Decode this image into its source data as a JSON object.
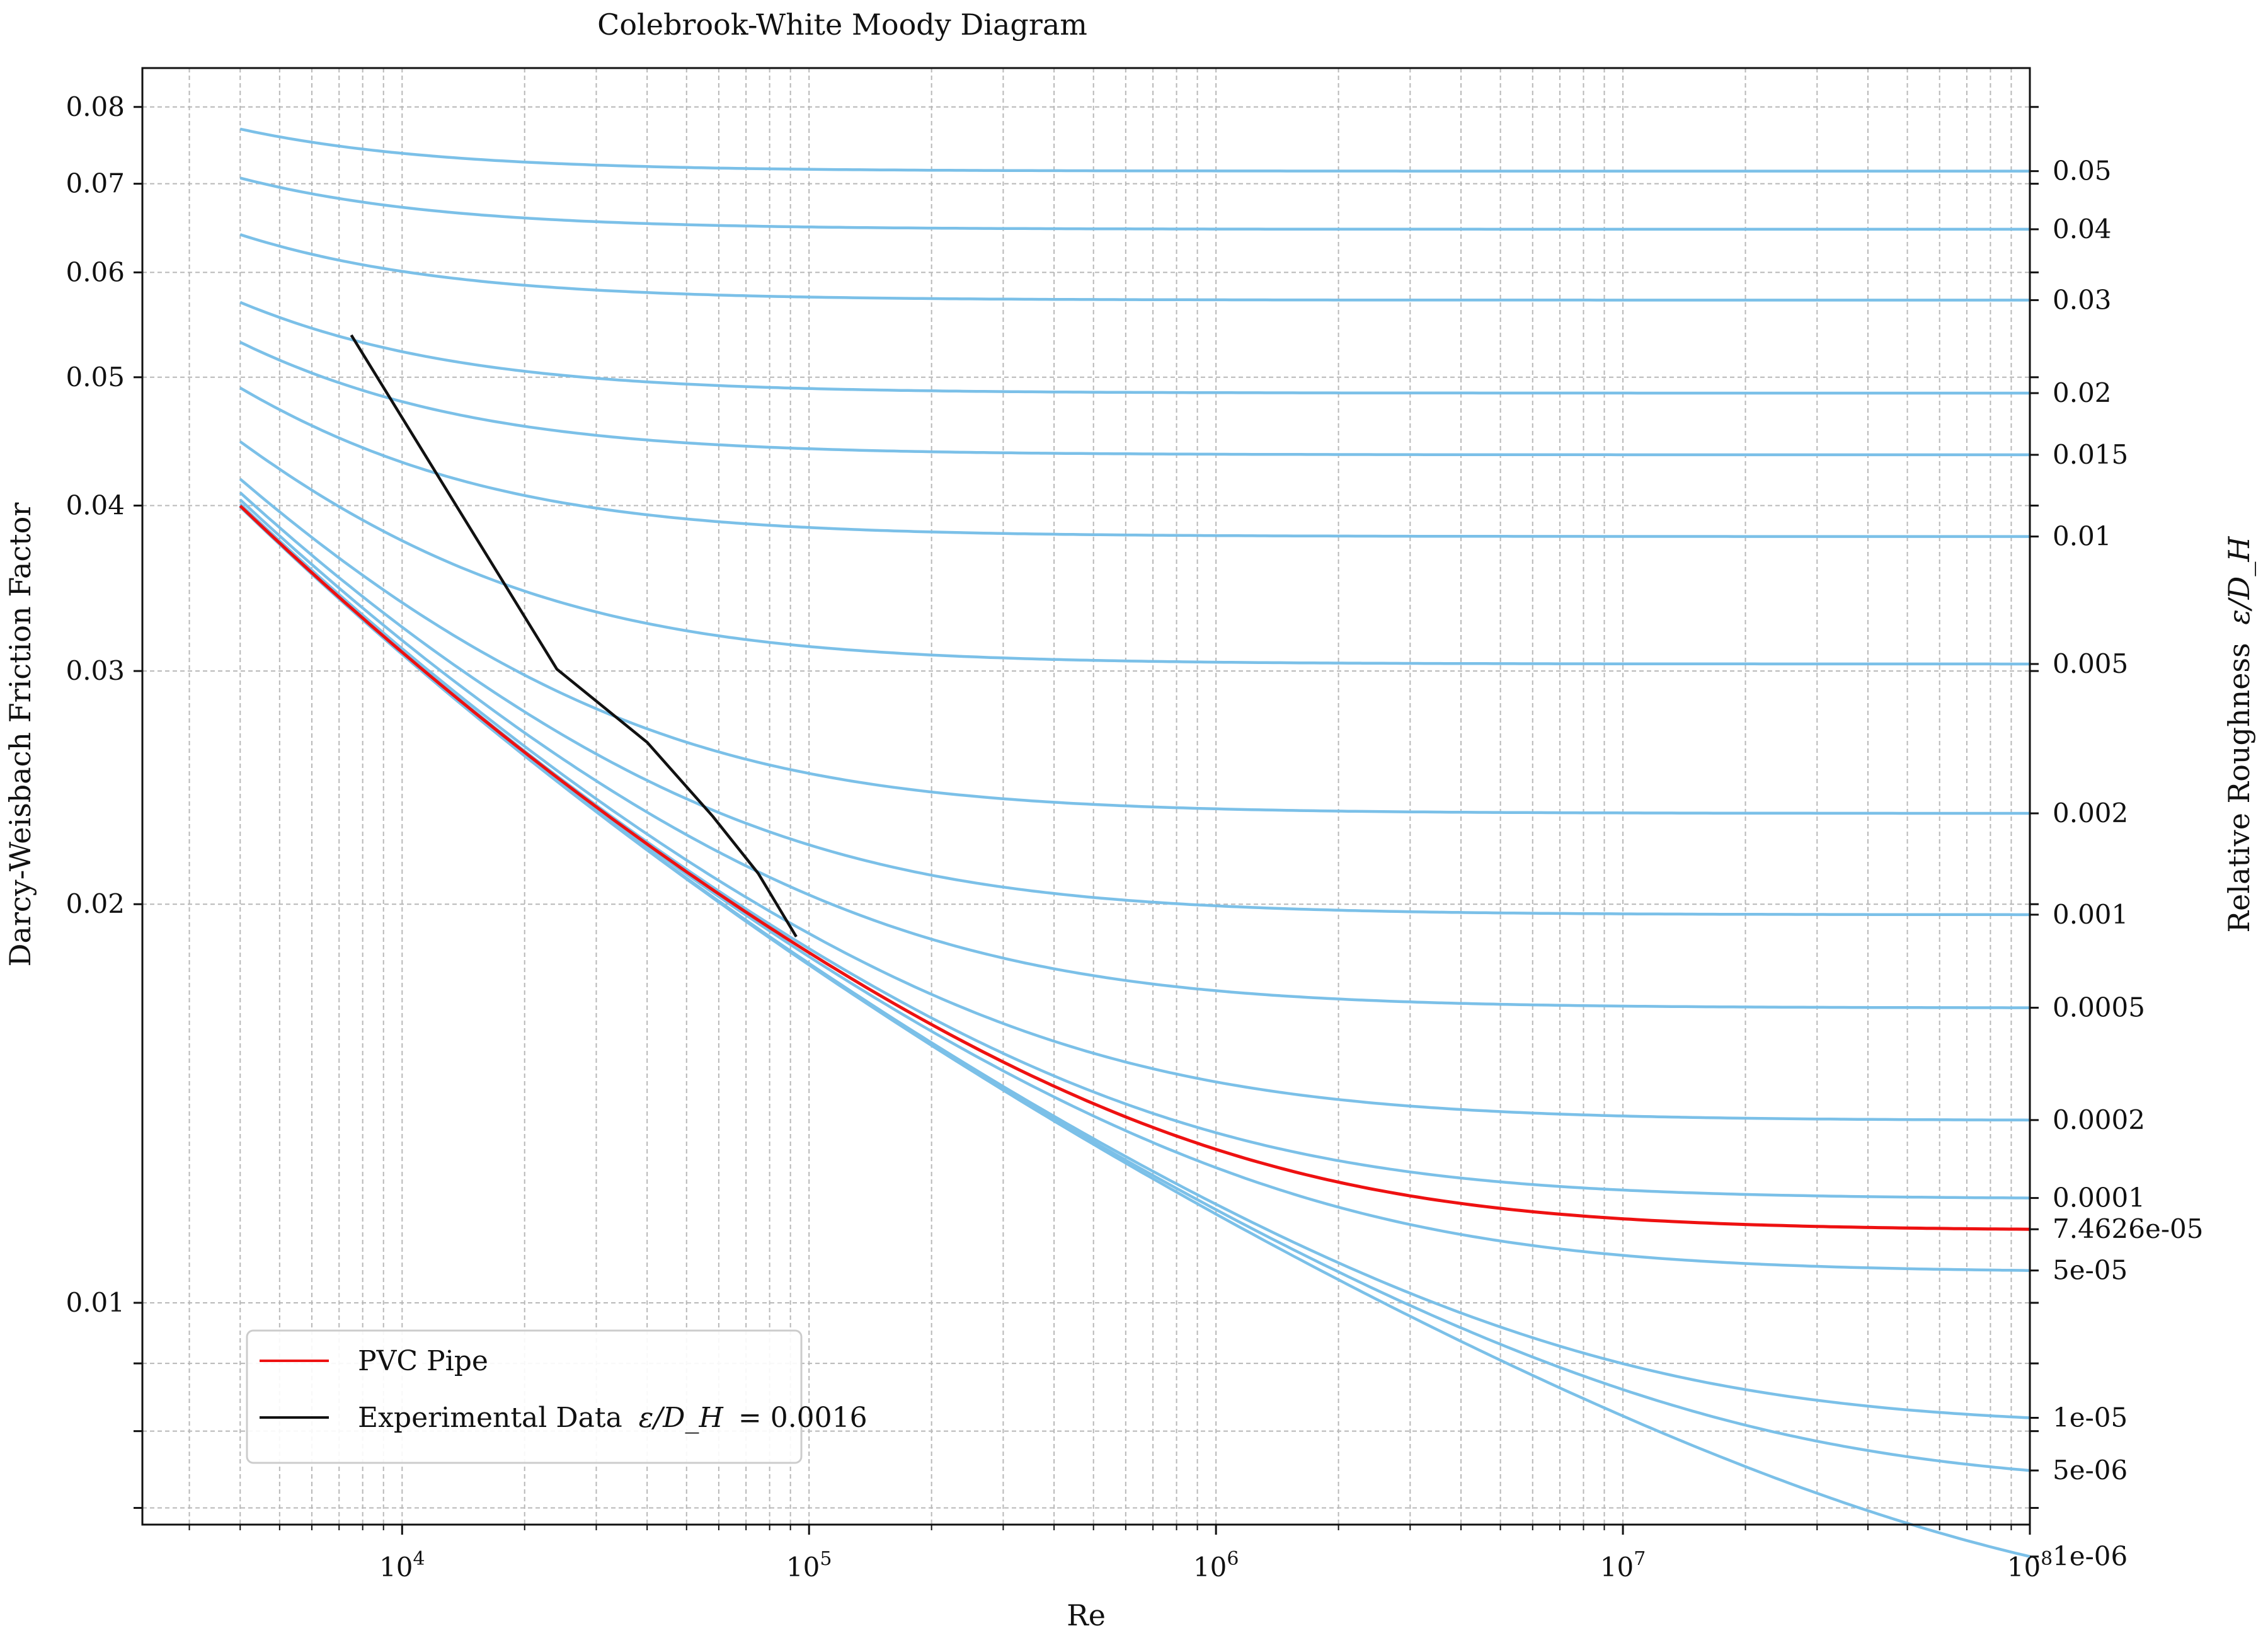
{
  "chart_data": {
    "type": "line",
    "title": "Colebrook-White Moody Diagram",
    "xlabel": "Re",
    "ylabel": "Darcy-Weisbach Friction Factor",
    "right_axis_label": "Relative Roughness",
    "right_axis_symbol": "ε/D_H",
    "x_scale": "log",
    "y_scale": "log",
    "xlim": [
      2300,
      100000000
    ],
    "ylim": [
      0.0068,
      0.0856
    ],
    "grid": true,
    "legend_position": "lower-left",
    "x_tick_labels": [
      {
        "value": 10000,
        "base": "10",
        "exp": "4"
      },
      {
        "value": 100000,
        "base": "10",
        "exp": "5"
      },
      {
        "value": 1000000,
        "base": "10",
        "exp": "6"
      },
      {
        "value": 10000000,
        "base": "10",
        "exp": "7"
      },
      {
        "value": 100000000,
        "base": "10",
        "exp": "8"
      }
    ],
    "y_tick_labels": [
      {
        "value": 0.08,
        "label": "0.08"
      },
      {
        "value": 0.07,
        "label": "0.07"
      },
      {
        "value": 0.06,
        "label": "0.06"
      },
      {
        "value": 0.05,
        "label": "0.05"
      },
      {
        "value": 0.04,
        "label": "0.04"
      },
      {
        "value": 0.03,
        "label": "0.03"
      },
      {
        "value": 0.02,
        "label": "0.02"
      },
      {
        "value": 0.01,
        "label": "0.01"
      }
    ],
    "y_minor_ticks": [
      0.009,
      0.008,
      0.007
    ],
    "roughness_curves": {
      "color": "#7bc0e8",
      "re_range": [
        4000,
        100000000
      ],
      "values": [
        0.05,
        0.04,
        0.03,
        0.02,
        0.015,
        0.01,
        0.005,
        0.002,
        0.001,
        0.0005,
        0.0002,
        0.0001,
        5e-05,
        1e-05,
        5e-06,
        1e-06
      ],
      "labels": [
        "0.05",
        "0.04",
        "0.03",
        "0.02",
        "0.015",
        "0.01",
        "0.005",
        "0.002",
        "0.001",
        "0.0005",
        "0.0002",
        "0.0001",
        "5e-05",
        "1e-05",
        "5e-06",
        "1e-06"
      ]
    },
    "series": [
      {
        "name": "PVC Pipe",
        "color": "#ee1111",
        "relative_roughness": 7.4626e-05,
        "right_label": "7.4626e-05"
      },
      {
        "name": "Experimental Data",
        "legend_suffix": "= 0.0016",
        "color": "#111111",
        "x": [
          7500,
          24000,
          40000,
          58000,
          75000,
          93000
        ],
        "y": [
          0.0538,
          0.0301,
          0.0265,
          0.0233,
          0.0211,
          0.0189
        ]
      }
    ]
  }
}
